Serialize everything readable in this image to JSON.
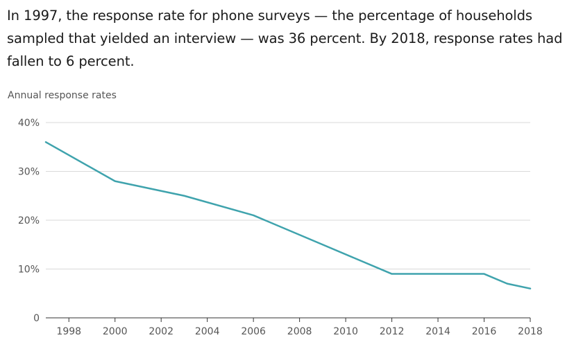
{
  "headline": "In 1997, the response rate for phone surveys — the percentage of households sampled that yielded an interview — was 36 percent. By 2018, response rates had fallen to 6 percent.",
  "chart_data": {
    "type": "line",
    "title": "",
    "subtitle": "Annual response rates",
    "xlabel": "",
    "ylabel": "",
    "xlim": [
      1997,
      2018
    ],
    "ylim": [
      0,
      40
    ],
    "yticks": [
      0,
      10,
      20,
      30,
      40
    ],
    "ytick_labels": [
      "0",
      "10%",
      "20%",
      "30%",
      "40%"
    ],
    "xticks": [
      1998,
      2000,
      2002,
      2004,
      2006,
      2008,
      2010,
      2012,
      2014,
      2016,
      2018
    ],
    "xtick_labels": [
      "1998",
      "2000",
      "2002",
      "2004",
      "2006",
      "2008",
      "2010",
      "2012",
      "2014",
      "2016",
      "2018"
    ],
    "grid": true,
    "series": [
      {
        "name": "Response rate",
        "color": "#3fa3ad",
        "x": [
          1997,
          2000,
          2003,
          2006,
          2009,
          2012,
          2016,
          2017,
          2018
        ],
        "y": [
          36,
          28,
          25,
          21,
          15,
          9,
          9,
          7,
          6
        ]
      }
    ]
  }
}
